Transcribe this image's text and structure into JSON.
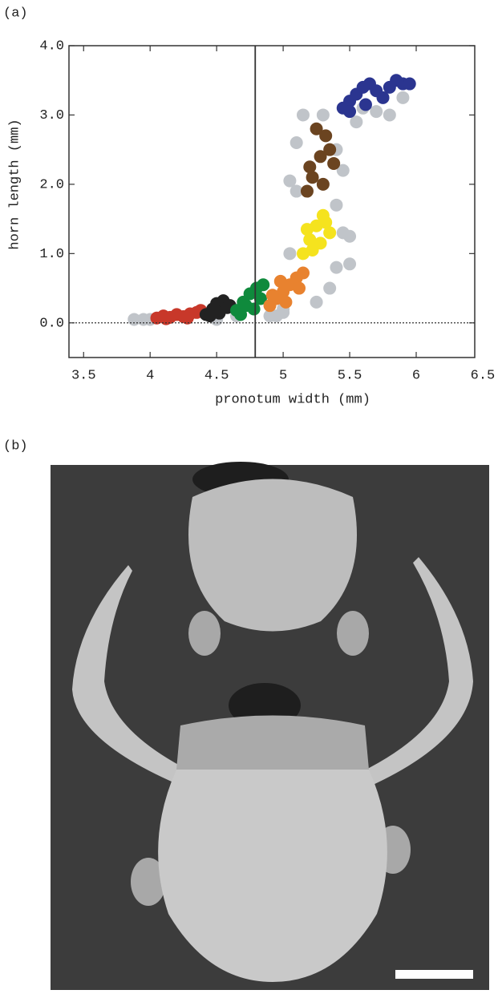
{
  "chart_data": {
    "type": "scatter",
    "panel_labels": [
      "(a)",
      "(b)"
    ],
    "xlabel": "pronotum width (mm)",
    "ylabel": "horn length (mm)",
    "xlim": [
      3.39,
      6.44
    ],
    "ylim": [
      -0.5,
      4.0
    ],
    "xticks": [
      3.5,
      4.0,
      4.5,
      5.0,
      5.5,
      6.0,
      6.5
    ],
    "yticks": [
      {
        "value": 0,
        "label": "0.0"
      },
      {
        "value": 1,
        "label": "1.0"
      },
      {
        "value": 2,
        "label": "2.0"
      },
      {
        "value": 3,
        "label": "3.0"
      },
      {
        "value": 4,
        "label": "4.0"
      }
    ],
    "threshold_x": 4.79,
    "zero_line_y": 0,
    "series": [
      {
        "color": "#c0c4c9",
        "x": [
          3.88,
          3.95,
          4.0,
          4.5,
          4.65,
          4.9,
          5.0,
          5.05,
          5.1,
          5.2,
          5.05,
          5.1,
          5.15,
          5.3,
          5.4,
          5.45,
          5.5,
          5.55,
          5.6,
          5.7,
          5.8,
          5.9,
          5.25,
          5.45,
          5.35,
          5.4,
          4.95,
          5.0,
          5.4,
          5.5
        ],
        "y": [
          0.05,
          0.05,
          0.05,
          0.05,
          0.1,
          0.1,
          0.15,
          1.0,
          1.9,
          1.2,
          2.05,
          2.6,
          3.0,
          3.0,
          2.5,
          1.3,
          1.25,
          2.9,
          3.1,
          3.05,
          3.0,
          3.25,
          0.3,
          2.2,
          0.5,
          0.8,
          0.1,
          0.2,
          1.7,
          0.85
        ]
      },
      {
        "color": "#c8382a",
        "x": [
          4.05,
          4.1,
          4.15,
          4.2,
          4.25,
          4.3,
          4.35,
          4.12,
          4.28,
          4.38
        ],
        "y": [
          0.07,
          0.1,
          0.08,
          0.12,
          0.09,
          0.13,
          0.15,
          0.06,
          0.07,
          0.18
        ]
      },
      {
        "color": "#222222",
        "x": [
          4.42,
          4.47,
          4.5,
          4.55,
          4.58,
          4.45,
          4.52,
          4.6
        ],
        "y": [
          0.12,
          0.2,
          0.28,
          0.32,
          0.22,
          0.1,
          0.14,
          0.25
        ]
      },
      {
        "color": "#0f8a3c",
        "x": [
          4.65,
          4.7,
          4.75,
          4.8,
          4.85,
          4.68,
          4.78,
          4.72,
          4.83
        ],
        "y": [
          0.18,
          0.3,
          0.42,
          0.5,
          0.55,
          0.12,
          0.2,
          0.25,
          0.35
        ]
      },
      {
        "color": "#e8822f",
        "x": [
          4.9,
          4.95,
          5.0,
          5.05,
          5.1,
          5.15,
          4.92,
          5.02,
          5.12,
          4.98
        ],
        "y": [
          0.25,
          0.35,
          0.45,
          0.55,
          0.65,
          0.72,
          0.4,
          0.3,
          0.5,
          0.6
        ]
      },
      {
        "color": "#f5e31e",
        "x": [
          5.15,
          5.2,
          5.25,
          5.3,
          5.35,
          5.22,
          5.28,
          5.18,
          5.32
        ],
        "y": [
          1.0,
          1.2,
          1.4,
          1.55,
          1.3,
          1.05,
          1.15,
          1.35,
          1.45
        ]
      },
      {
        "color": "#6b4420",
        "x": [
          5.18,
          5.22,
          5.28,
          5.32,
          5.35,
          5.2,
          5.3,
          5.25,
          5.38
        ],
        "y": [
          1.9,
          2.1,
          2.4,
          2.7,
          2.5,
          2.25,
          2.0,
          2.8,
          2.3
        ]
      },
      {
        "color": "#2b3590",
        "x": [
          5.45,
          5.5,
          5.55,
          5.6,
          5.65,
          5.7,
          5.75,
          5.8,
          5.85,
          5.9,
          5.95,
          5.5,
          5.62
        ],
        "y": [
          3.1,
          3.2,
          3.3,
          3.4,
          3.45,
          3.35,
          3.25,
          3.4,
          3.5,
          3.45,
          3.45,
          3.05,
          3.15
        ]
      }
    ]
  }
}
